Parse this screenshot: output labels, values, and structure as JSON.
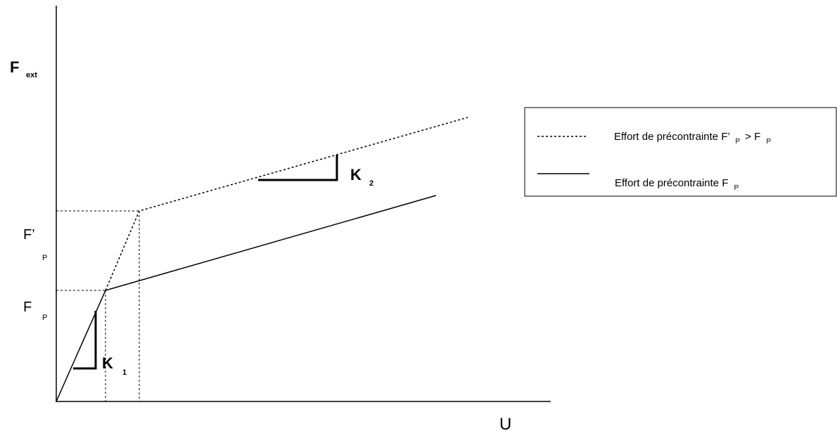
{
  "axes": {
    "y_label": "F",
    "y_label_sub": "ext",
    "x_label": "U"
  },
  "levels": {
    "fp_prime_main": "F’",
    "fp_prime_sub": "P",
    "fp_main": "F",
    "fp_sub": "P"
  },
  "stiffness": {
    "k1_main": "K",
    "k1_sub": "1",
    "k2_main": "K",
    "k2_sub": "2"
  },
  "legend": {
    "dotted_prefix": "Effort de précontrainte F’",
    "dotted_sub1": "P",
    "dotted_mid": " > F",
    "dotted_sub2": "P",
    "solid_prefix": "Effort de précontrainte F",
    "solid_sub": "P"
  },
  "colors": {
    "ink": "#000000",
    "background": "#ffffff"
  }
}
